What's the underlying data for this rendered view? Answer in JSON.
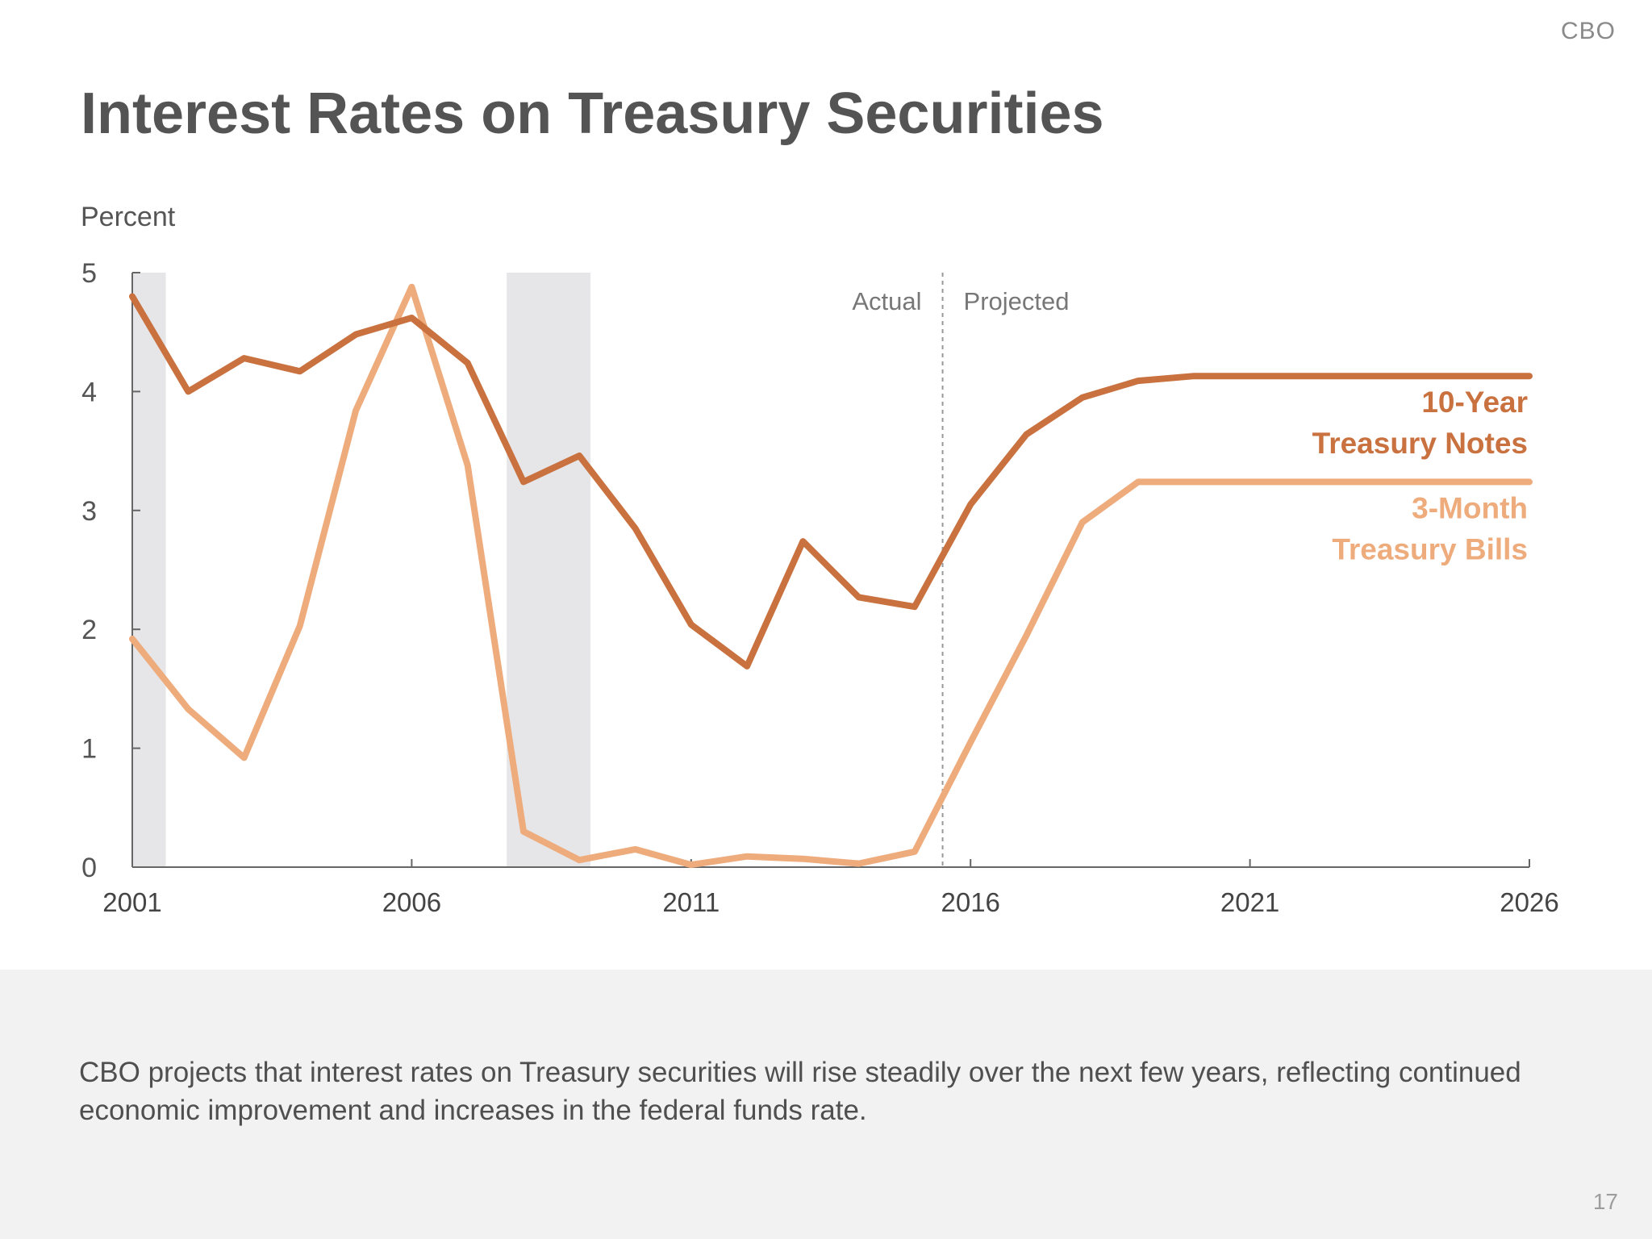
{
  "header": {
    "org_label": "CBO",
    "title": "Interest Rates on Treasury Securities"
  },
  "chart_data": {
    "type": "line",
    "title": "Interest Rates on Treasury Securities",
    "ylabel": "Percent",
    "xlabel": "",
    "xlim": [
      2001,
      2026
    ],
    "ylim": [
      0,
      5
    ],
    "x_ticks": [
      2001,
      2006,
      2011,
      2016,
      2021,
      2026
    ],
    "y_ticks": [
      0,
      1,
      2,
      3,
      4,
      5
    ],
    "grid": false,
    "recession_shading": [
      [
        2001,
        2001.6
      ],
      [
        2007.7,
        2009.2
      ]
    ],
    "divider": {
      "x": 2015.5,
      "left_label": "Actual",
      "right_label": "Projected"
    },
    "series": [
      {
        "name": "10-Year Treasury Notes",
        "label_lines": [
          "10-Year",
          "Treasury Notes"
        ],
        "color": "#c9713f",
        "x": [
          2001,
          2002,
          2003,
          2004,
          2005,
          2006,
          2007,
          2008,
          2009,
          2010,
          2011,
          2012,
          2013,
          2014,
          2015,
          2016,
          2017,
          2018,
          2019,
          2020,
          2021,
          2022,
          2023,
          2024,
          2025,
          2026
        ],
        "values": [
          4.8,
          4.0,
          4.28,
          4.17,
          4.48,
          4.62,
          4.24,
          3.24,
          3.46,
          2.85,
          2.04,
          1.69,
          2.74,
          2.27,
          2.19,
          3.05,
          3.64,
          3.95,
          4.09,
          4.13,
          4.13,
          4.13,
          4.13,
          4.13,
          4.13,
          4.13
        ]
      },
      {
        "name": "3-Month Treasury Bills",
        "label_lines": [
          "3-Month",
          "Treasury Bills"
        ],
        "color": "#eeab7c",
        "x": [
          2001,
          2002,
          2003,
          2004,
          2005,
          2006,
          2007,
          2008,
          2009,
          2010,
          2011,
          2012,
          2013,
          2014,
          2015,
          2016,
          2017,
          2018,
          2019,
          2020,
          2021,
          2022,
          2023,
          2024,
          2025,
          2026
        ],
        "values": [
          1.92,
          1.33,
          0.92,
          2.03,
          3.84,
          4.88,
          3.38,
          0.3,
          0.06,
          0.15,
          0.02,
          0.09,
          0.07,
          0.03,
          0.13,
          1.05,
          1.95,
          2.9,
          3.24,
          3.24,
          3.24,
          3.24,
          3.24,
          3.24,
          3.24,
          3.24
        ]
      }
    ]
  },
  "footer": {
    "description": "CBO projects that interest rates on Treasury securities will rise steadily over the next few years, reflecting continued economic improvement and increases in the federal funds rate.",
    "page_number": "17"
  }
}
